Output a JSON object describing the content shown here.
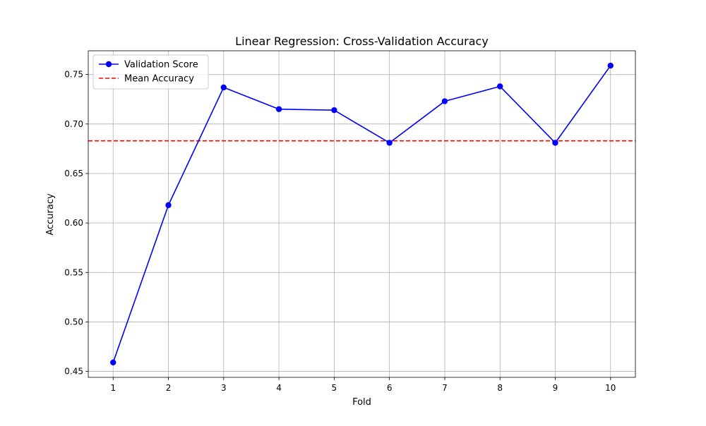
{
  "chart_data": {
    "type": "line",
    "title": "Linear Regression: Cross-Validation Accuracy",
    "xlabel": "Fold",
    "ylabel": "Accuracy",
    "x": [
      1,
      2,
      3,
      4,
      5,
      6,
      7,
      8,
      9,
      10
    ],
    "xlim": [
      0.55,
      10.45
    ],
    "ylim": [
      0.444,
      0.774
    ],
    "xticks": [
      1,
      2,
      3,
      4,
      5,
      6,
      7,
      8,
      9,
      10
    ],
    "yticks": [
      0.45,
      0.5,
      0.55,
      0.6,
      0.65,
      0.7,
      0.75
    ],
    "ytick_labels": [
      "0.45",
      "0.50",
      "0.55",
      "0.60",
      "0.65",
      "0.70",
      "0.75"
    ],
    "grid": true,
    "legend_position": "top-left",
    "series": [
      {
        "name": "Validation Score",
        "values": [
          0.459,
          0.618,
          0.737,
          0.715,
          0.714,
          0.681,
          0.723,
          0.738,
          0.681,
          0.759
        ],
        "color": "#0000ff",
        "style": "solid",
        "marker": "circle"
      }
    ],
    "reference_lines": [
      {
        "name": "Mean Accuracy",
        "y": 0.683,
        "color": "#ff0000",
        "style": "dashed"
      }
    ]
  }
}
